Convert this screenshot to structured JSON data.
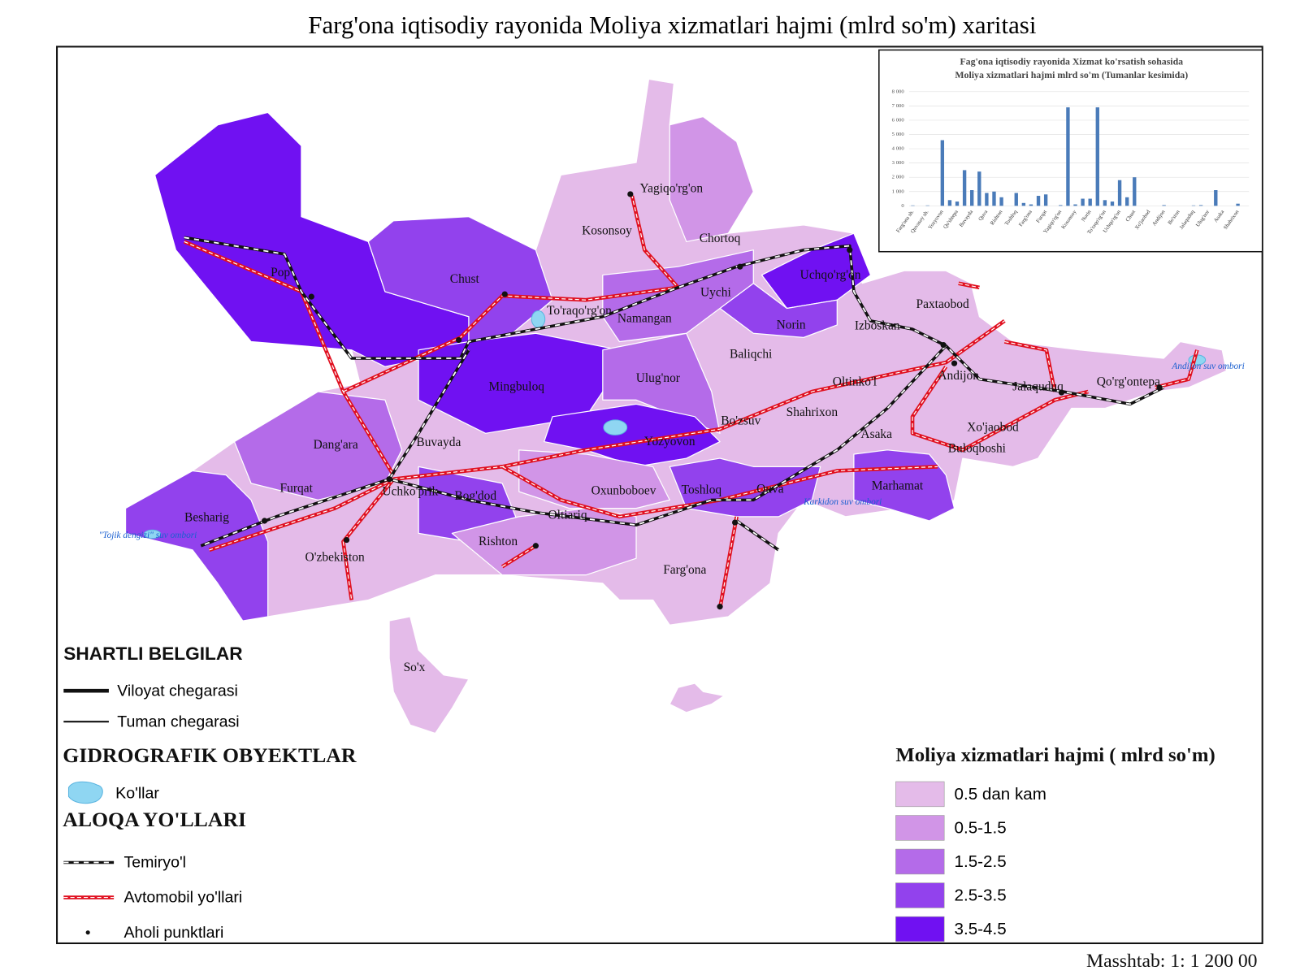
{
  "title": "Farg'ona iqtisodiy rayonida Moliya xizmatlari hajmi (mlrd so'm) xaritasi",
  "map_labels": [
    "Pop",
    "Chust",
    "To'raqo'rg'on",
    "Namangan",
    "Kosonsoy",
    "Yagiqo'rg'on",
    "Chortoq",
    "Uychi",
    "Uchqo'rg'on",
    "Norin",
    "Paxtaobod",
    "Izboskan",
    "Baliqchi",
    "Ulug'nor",
    "Mingbuloq",
    "Oltinko'l",
    "Andijon",
    "Jalaquduq",
    "Qo'rg'ontepa",
    "Bo'zsuv",
    "Shahrixon",
    "Asaka",
    "Xo'jaobod",
    "Buloqboshi",
    "Yozyovon",
    "Dang'ara",
    "Buvayda",
    "Furqat",
    "Uchko'prik",
    "Bog'dod",
    "Oxunboboev",
    "Toshloq",
    "Quva",
    "Marhamat",
    "Oltiariq",
    "Besharig",
    "Rishton",
    "O'zbekiston",
    "Farg'ona",
    "So'x"
  ],
  "water_labels": [
    "Andijon suv ombori",
    "Karkidon suv ombori",
    "\"Tojik dengizi\" suv ombori"
  ],
  "legend": {
    "title": "SHARTLI BELGILAR",
    "boundary_region": "Viloyat chegarasi",
    "boundary_district": "Tuman chegarasi",
    "hydro_title": "GIDROGRAFIK OBYEKTLAR",
    "lakes": "Ko'llar",
    "transport_title": "ALOQA YO'LLARI",
    "railway": "Temiryo'l",
    "roads": "Avtomobil yo'llari",
    "settlements": "Aholi punktlari"
  },
  "classes": {
    "title": "Moliya xizmatlari hajmi ( mlrd so'm)",
    "items": [
      {
        "label": "0.5 dan kam",
        "color": "#e4bbe9"
      },
      {
        "label": "0.5-1.5",
        "color": "#d195e7"
      },
      {
        "label": "1.5-2.5",
        "color": "#b46be9"
      },
      {
        "label": "2.5-3.5",
        "color": "#9242ed"
      },
      {
        "label": "3.5-4.5",
        "color": "#7011f2"
      }
    ]
  },
  "scale": "Masshtab: 1: 1 200 00",
  "chart_data": {
    "type": "bar",
    "title": "Fag'ona iqtisodiy rayonida Xizmat ko'rsatish sohasida",
    "subtitle": "Moliya xizmatlari hajmi mlrd so'm (Tumanlar kesimida)",
    "color": "#4a7bb9",
    "categories": [
      "Farg'ona sh.",
      null,
      "Quvasoy sh.",
      null,
      "Yozyovon",
      null,
      "Qo'shtepa",
      null,
      "Buvayda",
      null,
      "Quva",
      null,
      "Rishton",
      null,
      "Toshloq",
      null,
      "Farg'ona",
      null,
      "Furqat",
      null,
      "Yagiqo'rg'on",
      null,
      "Kosonsoy",
      null,
      "Norin",
      null,
      "To'raqo'rg'on",
      null,
      "Uchqo'rg'on",
      null,
      "Chust",
      null,
      "Xo'jaobod",
      null,
      "Andijon",
      null,
      "Bo'ston",
      null,
      "Jalaquduq",
      null,
      "Ulug'nor",
      null,
      "Asaka",
      null,
      "Shahrixon",
      null
    ],
    "values": [
      30,
      0,
      30,
      0,
      4600,
      400,
      300,
      2500,
      1100,
      2400,
      900,
      1000,
      600,
      0,
      900,
      200,
      100,
      700,
      800,
      0,
      50,
      6900,
      100,
      500,
      500,
      6900,
      400,
      300,
      1800,
      600,
      2000,
      0,
      0,
      0,
      50,
      0,
      0,
      0,
      30,
      50,
      0,
      1100,
      0,
      0,
      150,
      0
    ],
    "ylim": [
      0,
      8000
    ],
    "yticks": [
      0,
      {
        "value": 1000,
        "label": "1 000"
      },
      {
        "value": 2000,
        "label": "2 000"
      },
      {
        "value": 3000,
        "label": "3 000"
      },
      {
        "value": 4000,
        "label": "4 000"
      },
      {
        "value": 5000,
        "label": "5 000"
      },
      {
        "value": 6000,
        "label": "6 000"
      },
      {
        "value": 7000,
        "label": "7 000"
      },
      {
        "value": 8000,
        "label": "8 000"
      }
    ],
    "grid": true
  }
}
